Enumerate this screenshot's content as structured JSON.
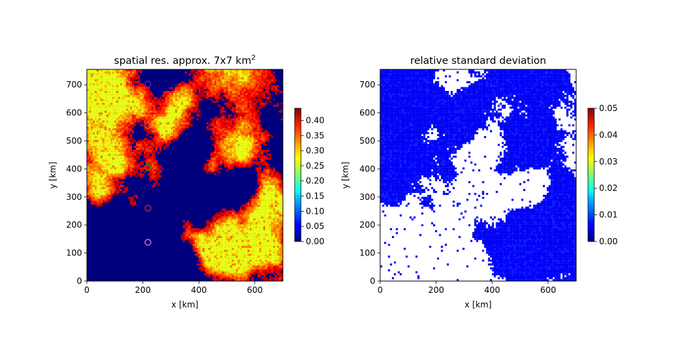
{
  "chart_data": [
    {
      "type": "heatmap",
      "title_main": "spatial res. approx. 7x7 km",
      "title_sup": "2",
      "xlabel": "x [km]",
      "ylabel": "y [km]",
      "xlim": [
        0,
        700
      ],
      "ylim": [
        0,
        755
      ],
      "xticks": [
        0,
        200,
        400,
        600
      ],
      "yticks": [
        0,
        100,
        200,
        300,
        400,
        500,
        600,
        700
      ],
      "colorbar": {
        "colormap": "jet",
        "min": 0.0,
        "max": 0.44,
        "ticks": [
          "0.00",
          "0.05",
          "0.10",
          "0.15",
          "0.20",
          "0.25",
          "0.30",
          "0.35",
          "0.40"
        ]
      },
      "markers": [
        {
          "x": 218,
          "y": 702,
          "color": "#7a1fa2"
        },
        {
          "x": 218,
          "y": 555,
          "color": "#e8602a"
        },
        {
          "x": 218,
          "y": 405,
          "color": "#2ca02c"
        },
        {
          "x": 218,
          "y": 260,
          "color": "#d62728"
        },
        {
          "x": 218,
          "y": 138,
          "color": "#e377c2"
        }
      ],
      "grid": false
    },
    {
      "type": "heatmap",
      "title": "relative standard deviation",
      "xlabel": "x [km]",
      "ylabel": "y [km]",
      "xlim": [
        0,
        700
      ],
      "ylim": [
        0,
        755
      ],
      "xticks": [
        0,
        200,
        400,
        600
      ],
      "yticks": [
        0,
        100,
        200,
        300,
        400,
        500,
        600,
        700
      ],
      "colorbar": {
        "colormap": "jet",
        "min": 0.0,
        "max": 0.05,
        "ticks": [
          "0.00",
          "0.01",
          "0.02",
          "0.03",
          "0.04",
          "0.05"
        ]
      },
      "grid": false
    }
  ]
}
